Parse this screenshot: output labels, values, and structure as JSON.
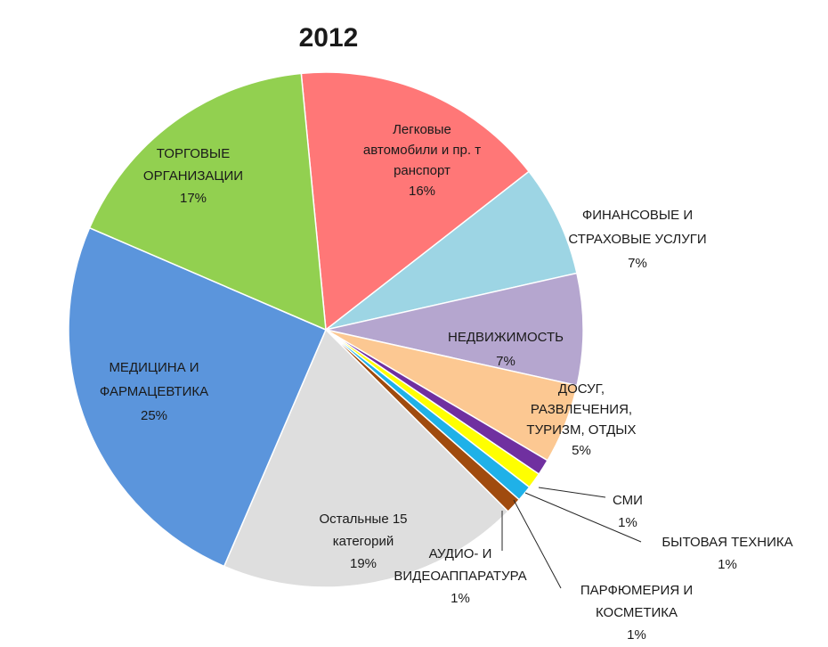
{
  "chart_data": {
    "type": "pie",
    "title": "2012",
    "slices": [
      {
        "label": [
          "Легковые",
          "автомобили и пр. т",
          "ранспорт"
        ],
        "percent_label": "16%",
        "value": 16,
        "color": "#ff7777"
      },
      {
        "label": [
          "ФИНАНСОВЫЕ И",
          "СТРАХОВЫЕ УСЛУГИ"
        ],
        "percent_label": "7%",
        "value": 7,
        "color": "#9dd5e4"
      },
      {
        "label": [
          "НЕДВИЖИМОСТЬ"
        ],
        "percent_label": "7%",
        "value": 7,
        "color": "#b5a6cf"
      },
      {
        "label": [
          "ДОСУГ,",
          "РАЗВЛЕЧЕНИЯ,",
          "ТУРИЗМ, ОТДЫХ"
        ],
        "percent_label": "5%",
        "value": 5,
        "color": "#fcc892"
      },
      {
        "label": [
          "СМИ"
        ],
        "percent_label": "1%",
        "value": 1,
        "color": "#7030a0"
      },
      {
        "label": [
          "БЫТОВАЯ ТЕХНИКА"
        ],
        "percent_label": "1%",
        "value": 1,
        "color": "#ffff00"
      },
      {
        "label": [
          "ПАРФЮМЕРИЯ И",
          "КОСМЕТИКА"
        ],
        "percent_label": "1%",
        "value": 1,
        "color": "#1fb1e8"
      },
      {
        "label": [
          "АУДИО- И",
          "ВИДЕОАППАРАТУРА"
        ],
        "percent_label": "1%",
        "value": 1,
        "color": "#a04b0e"
      },
      {
        "label": [
          "Остальные 15",
          "категорий"
        ],
        "percent_label": "19%",
        "value": 19,
        "color": "#dedede"
      },
      {
        "label": [
          "МЕДИЦИНА И",
          "ФАРМАЦЕВТИКА"
        ],
        "percent_label": "25%",
        "value": 25,
        "color": "#5b95dc"
      },
      {
        "label": [
          "ТОРГОВЫЕ",
          "ОРГАНИЗАЦИИ"
        ],
        "percent_label": "17%",
        "value": 17,
        "color": "#92d050"
      }
    ]
  }
}
